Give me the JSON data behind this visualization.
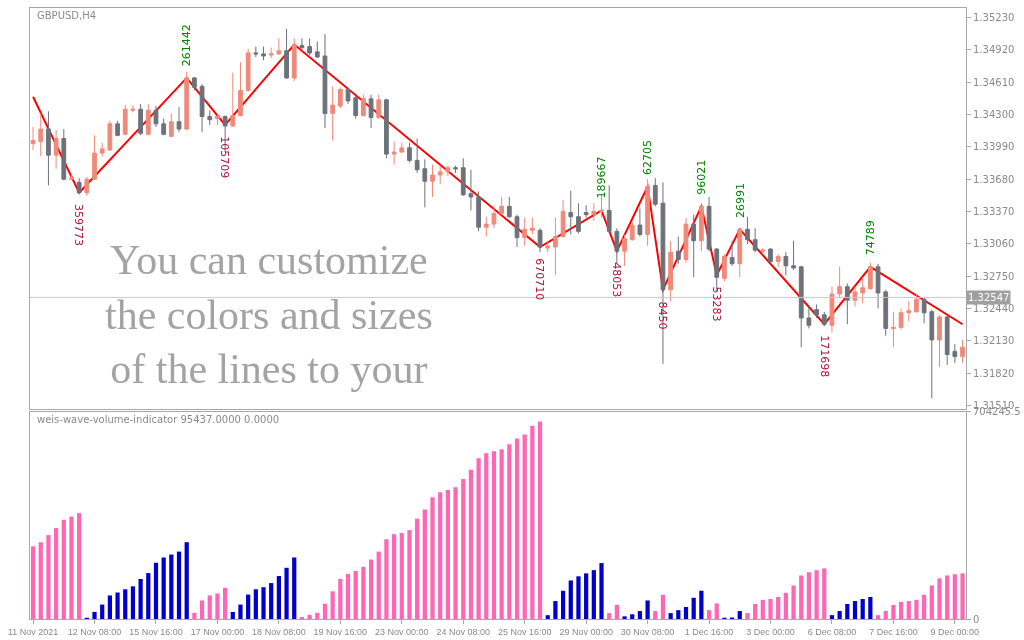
{
  "chart_data": [
    {
      "type": "candlestick",
      "title": "GBPUSD,H4",
      "categories": [
        null,
        null,
        null,
        null,
        null,
        null,
        null,
        null,
        null,
        null,
        null,
        null,
        null,
        null,
        null,
        null,
        null,
        null,
        null,
        null,
        null,
        null,
        null,
        null,
        null,
        null,
        null,
        null,
        null,
        null,
        null,
        null,
        null,
        null,
        null,
        null,
        null,
        null,
        null,
        null,
        null,
        null,
        null,
        null,
        null,
        null,
        null,
        null,
        null,
        null,
        null,
        null,
        null,
        null,
        null,
        null,
        null,
        null,
        null,
        null,
        null,
        null,
        null,
        null,
        null,
        null,
        null,
        null,
        null,
        null,
        null,
        null,
        null,
        null,
        null,
        null,
        null,
        null,
        null,
        null,
        null,
        null,
        null,
        null,
        null,
        null,
        null,
        null,
        null,
        null,
        null,
        null,
        null,
        null,
        null,
        null,
        null,
        null,
        null,
        null,
        null,
        null,
        null,
        null,
        null,
        null,
        null,
        null,
        null,
        null,
        null,
        null,
        null,
        null,
        null,
        null,
        null,
        null,
        null,
        null,
        null,
        null
      ],
      "tick_labels": "y",
      "colors": [
        "#ef8a7b",
        "#ef8a7b",
        "#6d727a",
        "#ef8a7b",
        "#6d727a",
        "#ef8a7b",
        "#6d727a",
        "#ef8a7b",
        "#ef8a7b",
        "#ef8a7b",
        "#ef8a7b",
        "#6d727a",
        "#ef8a7b",
        "#ef8a7b",
        "#6d727a",
        "#ef8a7b",
        "#6d727a",
        "#6d727a",
        "#ef8a7b",
        "#6d727a",
        "#ef8a7b",
        "#6d727a",
        "#6d727a",
        "#6d727a",
        "#ef8a7b",
        "#6d727a",
        "#ef8a7b",
        "#ef8a7b",
        "#ef8a7b",
        "#6d727a",
        "#6d727a",
        "#ef8a7b",
        "#ef8a7b",
        "#6d727a",
        "#ef8a7b",
        "#6d727a",
        "#6d727a",
        "#6d727a",
        "#6d727a",
        "#ef8a7b",
        "#ef8a7b",
        "#6d727a",
        "#6d727a",
        "#ef8a7b",
        "#6d727a",
        "#ef8a7b",
        "#6d727a",
        "#ef8a7b",
        "#ef8a7b",
        "#6d727a",
        "#6d727a",
        "#6d727a",
        "#ef8a7b",
        "#ef8a7b",
        "#ef8a7b",
        "#6d727a",
        "#6d727a",
        "#6d727a",
        "#6d727a",
        "#ef8a7b",
        "#ef8a7b",
        "#ef8a7b",
        "#6d727a",
        "#6d727a",
        "#ef8a7b",
        "#ef8a7b",
        "#6d727a",
        "#ef8a7b",
        "#ef8a7b",
        "#ef8a7b",
        "#6d727a",
        "#6d727a",
        "#6d727a",
        "#ef8a7b",
        "#ef8a7b",
        "#6d727a",
        "#6d727a",
        "#ef8a7b",
        "#ef8a7b",
        "#6d727a",
        "#ef8a7b",
        "#6d727a",
        "#6d727a",
        "#ef8a7b",
        "#6d727a",
        "#ef8a7b",
        "#6d727a",
        "#ef8a7b",
        "#6d727a",
        "#6d727a",
        "#ef8a7b",
        "#6d727a",
        "#ef8a7b",
        "#6d727a",
        "#6d727a",
        "#ef8a7b",
        "#6d727a",
        "#ef8a7b",
        "#6d727a",
        "#6d727a",
        "#6d727a",
        "#6d727a",
        "#6d727a",
        "#6d727a",
        "#ef8a7b",
        "#ef8a7b",
        "#6d727a",
        "#ef8a7b",
        "#ef8a7b",
        "#ef8a7b",
        "#6d727a",
        "#6d727a",
        "#ef8a7b",
        "#ef8a7b",
        "#ef8a7b",
        "#ef8a7b",
        "#6d727a",
        "#6d727a",
        "#ef8a7b",
        "#6d727a",
        "#6d727a",
        "#ef8a7b"
      ],
      "ohlc": [
        [
          1.3402,
          1.3418,
          1.3396,
          1.3405
        ],
        [
          1.3404,
          1.3431,
          1.339,
          1.3416
        ],
        [
          1.3416,
          1.3433,
          1.3362,
          1.3391
        ],
        [
          1.3391,
          1.3415,
          1.3378,
          1.3407
        ],
        [
          1.3407,
          1.3416,
          1.3367,
          1.3368
        ],
        [
          1.3368,
          1.3373,
          1.3367,
          1.3369
        ],
        [
          1.3365,
          1.3369,
          1.3354,
          1.3355
        ],
        [
          1.3355,
          1.337,
          1.3352,
          1.3368
        ],
        [
          1.3368,
          1.341,
          1.3367,
          1.3393
        ],
        [
          1.3393,
          1.3403,
          1.339,
          1.3397
        ],
        [
          1.3396,
          1.3424,
          1.3395,
          1.3421
        ],
        [
          1.3421,
          1.3424,
          1.3409,
          1.341
        ],
        [
          1.3411,
          1.3439,
          1.341,
          1.3435
        ],
        [
          1.3434,
          1.3439,
          1.3432,
          1.3435
        ],
        [
          1.3435,
          1.344,
          1.341,
          1.3412
        ],
        [
          1.3411,
          1.344,
          1.341,
          1.3434
        ],
        [
          1.3434,
          1.3438,
          1.3418,
          1.3421
        ],
        [
          1.3421,
          1.3426,
          1.341,
          1.3411
        ],
        [
          1.3409,
          1.3431,
          1.3409,
          1.3423
        ],
        [
          1.3423,
          1.3437,
          1.3413,
          1.3416
        ],
        [
          1.3416,
          1.3471,
          1.3415,
          1.3465
        ],
        [
          1.3465,
          1.3466,
          1.3453,
          1.3456
        ],
        [
          1.3457,
          1.3459,
          1.3413,
          1.3428
        ],
        [
          1.3428,
          1.3434,
          1.342,
          1.3425
        ],
        [
          1.3426,
          1.3431,
          1.342,
          1.3428
        ],
        [
          1.3428,
          1.3429,
          1.3394,
          1.3419
        ],
        [
          1.3419,
          1.347,
          1.3418,
          1.3429
        ],
        [
          1.3429,
          1.348,
          1.3428,
          1.3453
        ],
        [
          1.3453,
          1.3493,
          1.3452,
          1.3489
        ],
        [
          1.3489,
          1.3495,
          1.3485,
          1.3488
        ],
        [
          1.3488,
          1.3495,
          1.3482,
          1.3486
        ],
        [
          1.3487,
          1.3494,
          1.3484,
          1.3488
        ],
        [
          1.3488,
          1.3503,
          1.3487,
          1.3491
        ],
        [
          1.3491,
          1.3512,
          1.3464,
          1.3465
        ],
        [
          1.3465,
          1.3503,
          1.3462,
          1.3497
        ],
        [
          1.3496,
          1.3503,
          1.349,
          1.3494
        ],
        [
          1.3495,
          1.3503,
          1.3487,
          1.3489
        ],
        [
          1.349,
          1.35,
          1.3484,
          1.3485
        ],
        [
          1.3486,
          1.3507,
          1.3417,
          1.3431
        ],
        [
          1.3431,
          1.3457,
          1.3405,
          1.3439
        ],
        [
          1.3438,
          1.3456,
          1.3436,
          1.3454
        ],
        [
          1.3454,
          1.3456,
          1.344,
          1.3443
        ],
        [
          1.3446,
          1.3448,
          1.3426,
          1.3429
        ],
        [
          1.3429,
          1.3449,
          1.3428,
          1.3445
        ],
        [
          1.3445,
          1.3449,
          1.3417,
          1.3427
        ],
        [
          1.3427,
          1.3449,
          1.3426,
          1.3444
        ],
        [
          1.3444,
          1.3445,
          1.3388,
          1.3392
        ],
        [
          1.3392,
          1.3404,
          1.3382,
          1.3394
        ],
        [
          1.3394,
          1.3403,
          1.3393,
          1.3398
        ],
        [
          1.3398,
          1.3403,
          1.3384,
          1.3386
        ],
        [
          1.3386,
          1.3407,
          1.3374,
          1.3377
        ],
        [
          1.3378,
          1.3387,
          1.3341,
          1.3366
        ],
        [
          1.3366,
          1.3382,
          1.3351,
          1.3372
        ],
        [
          1.3372,
          1.3381,
          1.3363,
          1.3375
        ],
        [
          1.3375,
          1.3381,
          1.3371,
          1.3379
        ],
        [
          1.3379,
          1.3381,
          1.3374,
          1.3378
        ],
        [
          1.3379,
          1.3388,
          1.3352,
          1.3353
        ],
        [
          1.3354,
          1.3377,
          1.3338,
          1.3351
        ],
        [
          1.3351,
          1.3356,
          1.3318,
          1.3322
        ],
        [
          1.3322,
          1.3332,
          1.3313,
          1.3325
        ],
        [
          1.3325,
          1.3343,
          1.3321,
          1.3335
        ],
        [
          1.3335,
          1.3351,
          1.3334,
          1.3342
        ],
        [
          1.3342,
          1.3351,
          1.3331,
          1.3332
        ],
        [
          1.3332,
          1.3334,
          1.3303,
          1.3312
        ],
        [
          1.3312,
          1.3331,
          1.3304,
          1.332
        ],
        [
          1.3319,
          1.3331,
          1.3315,
          1.3321
        ],
        [
          1.3319,
          1.3321,
          1.3298,
          1.3303
        ],
        [
          1.3302,
          1.3309,
          1.3298,
          1.3304
        ],
        [
          1.3303,
          1.3331,
          1.3276,
          1.3313
        ],
        [
          1.3313,
          1.3348,
          1.3312,
          1.3337
        ],
        [
          1.3336,
          1.3357,
          1.3315,
          1.3332
        ],
        [
          1.3332,
          1.3345,
          1.3316,
          1.3318
        ],
        [
          1.3336,
          1.3343,
          1.3331,
          1.3334
        ],
        [
          1.3334,
          1.3345,
          1.3328,
          1.3337
        ],
        [
          1.3337,
          1.3354,
          1.3331,
          1.3338
        ],
        [
          1.3338,
          1.3362,
          1.3316,
          1.3318
        ],
        [
          1.3318,
          1.3321,
          1.3287,
          1.3299
        ],
        [
          1.3299,
          1.3315,
          1.3285,
          1.3311
        ],
        [
          1.331,
          1.3327,
          1.3309,
          1.3324
        ],
        [
          1.3324,
          1.334,
          1.3313,
          1.3315
        ],
        [
          1.3315,
          1.3368,
          1.3304,
          1.3361
        ],
        [
          1.3362,
          1.3369,
          1.3342,
          1.3344
        ],
        [
          1.3345,
          1.3365,
          1.3191,
          1.3262
        ],
        [
          1.3262,
          1.3309,
          1.3251,
          1.3298
        ],
        [
          1.3299,
          1.3313,
          1.3287,
          1.3291
        ],
        [
          1.3291,
          1.3331,
          1.3288,
          1.3325
        ],
        [
          1.3325,
          1.3334,
          1.3274,
          1.3309
        ],
        [
          1.3309,
          1.3343,
          1.3299,
          1.3342
        ],
        [
          1.3342,
          1.3351,
          1.3299,
          1.3301
        ],
        [
          1.3301,
          1.3302,
          1.326,
          1.3274
        ],
        [
          1.3273,
          1.3296,
          1.327,
          1.3294
        ],
        [
          1.3293,
          1.3309,
          1.3285,
          1.3287
        ],
        [
          1.3287,
          1.3321,
          1.3274,
          1.332
        ],
        [
          1.332,
          1.3332,
          1.3306,
          1.331
        ],
        [
          1.331,
          1.3321,
          1.3298,
          1.33
        ],
        [
          1.3299,
          1.3302,
          1.3296,
          1.33
        ],
        [
          1.3301,
          1.3302,
          1.3287,
          1.3289
        ],
        [
          1.3289,
          1.3296,
          1.3284,
          1.3294
        ],
        [
          1.3294,
          1.3298,
          1.3276,
          1.3285
        ],
        [
          1.3285,
          1.3309,
          1.3281,
          1.3283
        ],
        [
          1.3284,
          1.3285,
          1.3207,
          1.3235
        ],
        [
          1.3235,
          1.3246,
          1.3225,
          1.3228
        ],
        [
          1.3243,
          1.3248,
          1.3235,
          1.3238
        ],
        [
          1.3238,
          1.3241,
          1.3227,
          1.3229
        ],
        [
          1.3228,
          1.3265,
          1.3221,
          1.3258
        ],
        [
          1.3258,
          1.3284,
          1.3254,
          1.3265
        ],
        [
          1.3265,
          1.3268,
          1.3229,
          1.3252
        ],
        [
          1.3252,
          1.3265,
          1.3246,
          1.326
        ],
        [
          1.3259,
          1.3274,
          1.3249,
          1.3264
        ],
        [
          1.3263,
          1.3288,
          1.3262,
          1.3284
        ],
        [
          1.3284,
          1.3287,
          1.3244,
          1.3259
        ],
        [
          1.326,
          1.3262,
          1.3218,
          1.3225
        ],
        [
          1.3225,
          1.3241,
          1.3207,
          1.3226
        ],
        [
          1.3226,
          1.3244,
          1.3224,
          1.324
        ],
        [
          1.324,
          1.3251,
          1.3232,
          1.3242
        ],
        [
          1.3241,
          1.3258,
          1.324,
          1.3253
        ],
        [
          1.3253,
          1.3255,
          1.323,
          1.324
        ],
        [
          1.3241,
          1.3243,
          1.3158,
          1.3214
        ],
        [
          1.3214,
          1.3238,
          1.3188,
          1.3236
        ],
        [
          1.3236,
          1.3237,
          1.319,
          1.32
        ],
        [
          1.3203,
          1.321,
          1.3192,
          1.3198
        ],
        [
          1.3198,
          1.3214,
          1.3192,
          1.3207
        ]
      ],
      "series": [
        {
          "type": "line",
          "color": "#ff0000",
          "values": [
            1.3447,
            null,
            null,
            null,
            null,
            null,
            1.3355,
            null,
            null,
            null,
            null,
            null,
            null,
            null,
            null,
            null,
            null,
            null,
            null,
            null,
            1.3465,
            null,
            null,
            null,
            null,
            1.342,
            null,
            null,
            null,
            null,
            null,
            null,
            null,
            null,
            1.3497,
            null,
            null,
            null,
            null,
            null,
            null,
            null,
            null,
            null,
            null,
            null,
            null,
            null,
            null,
            null,
            null,
            null,
            null,
            null,
            null,
            null,
            null,
            null,
            null,
            null,
            null,
            null,
            null,
            null,
            null,
            null,
            1.3303,
            null,
            null,
            null,
            null,
            null,
            null,
            null,
            1.3338,
            null,
            1.3299,
            null,
            null,
            null,
            1.3361,
            null,
            1.3262,
            null,
            null,
            null,
            null,
            1.3342,
            null,
            1.3276,
            null,
            null,
            1.332,
            null,
            null,
            null,
            null,
            null,
            null,
            null,
            null,
            null,
            null,
            1.3229,
            null,
            null,
            null,
            null,
            null,
            1.3284,
            null,
            null,
            null,
            null,
            null,
            null,
            null,
            null,
            null,
            null,
            null,
            1.3229
          ]
        }
      ],
      "ylim": [
        1.3148,
        1.3532
      ],
      "yticks": [
        {
          "value": 1.3523,
          "label": "1.35230"
        },
        {
          "value": 1.3492,
          "label": "1.34920"
        },
        {
          "value": 1.3461,
          "label": "1.34610"
        },
        {
          "value": 1.343,
          "label": "1.34300"
        },
        {
          "value": 1.3399,
          "label": "1.33990"
        },
        {
          "value": 1.3368,
          "label": "1.33680"
        },
        {
          "value": 1.3337,
          "label": "1.33370"
        },
        {
          "value": 1.3306,
          "label": "1.33060"
        },
        {
          "value": 1.3275,
          "label": "1.32750"
        },
        {
          "value": 1.3244,
          "label": "1.32440"
        },
        {
          "value": 1.3213,
          "label": "1.32130"
        },
        {
          "value": 1.3182,
          "label": "1.31820"
        },
        {
          "value": 1.3151,
          "label": "1.31510"
        }
      ],
      "ref_lines": [
        {
          "axis": "y",
          "value": 1.32547,
          "label": "1.32547",
          "color": "#c8c8c8"
        }
      ],
      "annotations": [
        "You can customize\nthe colors and sizes\nof the lines to your",
        {
          "text": "359773",
          "y": 1.3355
        },
        {
          "text": "261442",
          "y": 1.3465
        },
        {
          "text": "105709",
          "y": 1.342
        },
        {
          "text": "670710",
          "y": 1.3303
        },
        {
          "text": "189667",
          "y": 1.3338
        },
        {
          "text": "48053",
          "y": 1.3299
        },
        {
          "text": "62705",
          "y": 1.3361
        },
        {
          "text": "8450",
          "y": 1.3262
        },
        {
          "text": "96021",
          "y": 1.3342
        },
        {
          "text": "53283",
          "y": 1.3276
        },
        {
          "text": "26991",
          "y": 1.332
        },
        {
          "text": "171698",
          "y": 1.3229
        },
        {
          "text": "74789",
          "y": 1.3284
        }
      ]
    },
    {
      "type": "bar",
      "title": "weis-wave-volume-indicator 95437.0000 0.0000",
      "categories": [
        "11 Nov 2021",
        null,
        null,
        null,
        null,
        null,
        null,
        null,
        "12 Nov 08:00",
        null,
        null,
        null,
        null,
        null,
        null,
        null,
        "15 Nov 16:00",
        null,
        null,
        null,
        null,
        null,
        null,
        null,
        "17 Nov 00:00",
        null,
        null,
        null,
        null,
        null,
        null,
        null,
        "18 Nov 08:00",
        null,
        null,
        null,
        null,
        null,
        null,
        null,
        "19 Nov 16:00",
        null,
        null,
        null,
        null,
        null,
        null,
        null,
        "23 Nov 00:00",
        null,
        null,
        null,
        null,
        null,
        null,
        null,
        "24 Nov 08:00",
        null,
        null,
        null,
        null,
        null,
        null,
        null,
        "25 Nov 16:00",
        null,
        null,
        null,
        null,
        null,
        null,
        null,
        "29 Nov 00:00",
        null,
        null,
        null,
        null,
        null,
        null,
        null,
        "30 Nov 08:00",
        null,
        null,
        null,
        null,
        null,
        null,
        null,
        "1 Dec 16:00",
        null,
        null,
        null,
        null,
        null,
        null,
        null,
        "3 Dec 00:00",
        null,
        null,
        null,
        null,
        null,
        null,
        null,
        "6 Dec 08:00",
        null,
        null,
        null,
        null,
        null,
        null,
        null,
        "7 Dec 16:00",
        null,
        null,
        null,
        null,
        null,
        null,
        null,
        "9 Dec 00:00",
        null
      ],
      "values": [
        247000,
        261000,
        285000,
        309000,
        337000,
        348000,
        360000,
        4000,
        24000,
        49000,
        80000,
        90000,
        101000,
        111000,
        136000,
        156000,
        191000,
        209000,
        219000,
        229000,
        261000,
        21000,
        63000,
        80000,
        87000,
        106000,
        24000,
        49000,
        83000,
        101000,
        108000,
        122000,
        146000,
        174000,
        209000,
        7000,
        14000,
        21000,
        52000,
        94000,
        136000,
        153000,
        163000,
        177000,
        202000,
        229000,
        271000,
        288000,
        292000,
        302000,
        341000,
        372000,
        414000,
        431000,
        438000,
        448000,
        476000,
        507000,
        546000,
        563000,
        570000,
        577000,
        594000,
        613000,
        627000,
        657000,
        671000,
        13000,
        61000,
        96000,
        131000,
        145000,
        155000,
        166000,
        190000,
        20000,
        48000,
        9000,
        16000,
        27000,
        63000,
        27000,
        82000,
        20000,
        30000,
        41000,
        72000,
        96000,
        30000,
        53000,
        2000,
        5000,
        27000,
        20000,
        51000,
        65000,
        68000,
        75000,
        89000,
        114000,
        148000,
        159000,
        166000,
        172000,
        13000,
        27000,
        51000,
        61000,
        68000,
        75000,
        13000,
        27000,
        48000,
        58000,
        61000,
        65000,
        82000,
        114000,
        138000,
        148000,
        152000,
        155000
      ],
      "colors": [
        "#ff66b3",
        "#ff66b3",
        "#ff66b3",
        "#ff66b3",
        "#ff66b3",
        "#ff66b3",
        "#ff66b3",
        "#0000cc",
        "#0000cc",
        "#0000cc",
        "#0000cc",
        "#0000cc",
        "#0000cc",
        "#0000cc",
        "#0000cc",
        "#0000cc",
        "#0000cc",
        "#0000cc",
        "#0000cc",
        "#0000cc",
        "#0000cc",
        "#ff66b3",
        "#ff66b3",
        "#ff66b3",
        "#ff66b3",
        "#ff66b3",
        "#0000cc",
        "#0000cc",
        "#0000cc",
        "#0000cc",
        "#0000cc",
        "#0000cc",
        "#0000cc",
        "#0000cc",
        "#0000cc",
        "#ff66b3",
        "#ff66b3",
        "#ff66b3",
        "#ff66b3",
        "#ff66b3",
        "#ff66b3",
        "#ff66b3",
        "#ff66b3",
        "#ff66b3",
        "#ff66b3",
        "#ff66b3",
        "#ff66b3",
        "#ff66b3",
        "#ff66b3",
        "#ff66b3",
        "#ff66b3",
        "#ff66b3",
        "#ff66b3",
        "#ff66b3",
        "#ff66b3",
        "#ff66b3",
        "#ff66b3",
        "#ff66b3",
        "#ff66b3",
        "#ff66b3",
        "#ff66b3",
        "#ff66b3",
        "#ff66b3",
        "#ff66b3",
        "#ff66b3",
        "#ff66b3",
        "#ff66b3",
        "#0000cc",
        "#0000cc",
        "#0000cc",
        "#0000cc",
        "#0000cc",
        "#0000cc",
        "#0000cc",
        "#0000cc",
        "#ff66b3",
        "#ff66b3",
        "#0000cc",
        "#0000cc",
        "#0000cc",
        "#0000cc",
        "#ff66b3",
        "#ff66b3",
        "#0000cc",
        "#0000cc",
        "#0000cc",
        "#0000cc",
        "#0000cc",
        "#ff66b3",
        "#ff66b3",
        "#0000cc",
        "#0000cc",
        "#0000cc",
        "#ff66b3",
        "#ff66b3",
        "#ff66b3",
        "#ff66b3",
        "#ff66b3",
        "#ff66b3",
        "#ff66b3",
        "#ff66b3",
        "#ff66b3",
        "#ff66b3",
        "#ff66b3",
        "#0000cc",
        "#0000cc",
        "#0000cc",
        "#0000cc",
        "#0000cc",
        "#0000cc",
        "#ff66b3",
        "#ff66b3",
        "#ff66b3",
        "#ff66b3",
        "#ff66b3",
        "#ff66b3",
        "#ff66b3",
        "#ff66b3",
        "#ff66b3",
        "#ff66b3",
        "#ff66b3",
        "#ff66b3"
      ],
      "ylim": [
        0,
        704245.5
      ],
      "yticks": [
        0,
        704245.5
      ]
    }
  ]
}
